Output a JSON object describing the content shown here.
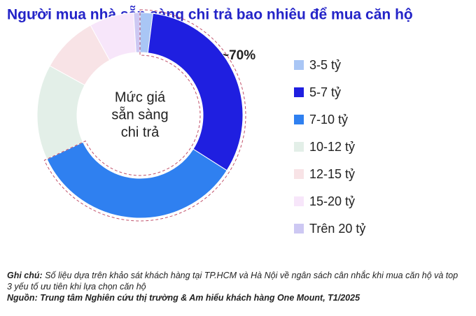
{
  "chart_data": {
    "type": "donut",
    "title": "Người mua nhà sẵn sàng chi trả bao nhiêu để mua căn hộ",
    "center_label": [
      "Mức giá",
      "sẵn sàng",
      "chi trả"
    ],
    "annotation": "~70%",
    "categories": [
      "3-5 tỷ",
      "5-7 tỷ",
      "7-10 tỷ",
      "10-12 tỷ",
      "12-15 tỷ",
      "15-20 tỷ",
      "Trên 20 tỷ"
    ],
    "values": [
      2,
      32,
      34,
      15,
      9,
      7,
      1
    ],
    "colors": [
      "#a9c6f5",
      "#1f1fe0",
      "#2f80f0",
      "#e3efe8",
      "#f8e3e6",
      "#f7e6fa",
      "#cdc8f3"
    ],
    "note_label": "Ghi chú:",
    "note": "Số liệu dựa trên khảo sát khách hàng tại TP.HCM và Hà Nội về ngân sách cân nhắc khi mua căn hộ và top 3 yếu tố ưu tiên khi lựa chọn căn hộ",
    "source": "Nguồn: Trung tâm Nghiên cứu thị trường & Am hiểu khách hàng One Mount, T1/2025"
  }
}
